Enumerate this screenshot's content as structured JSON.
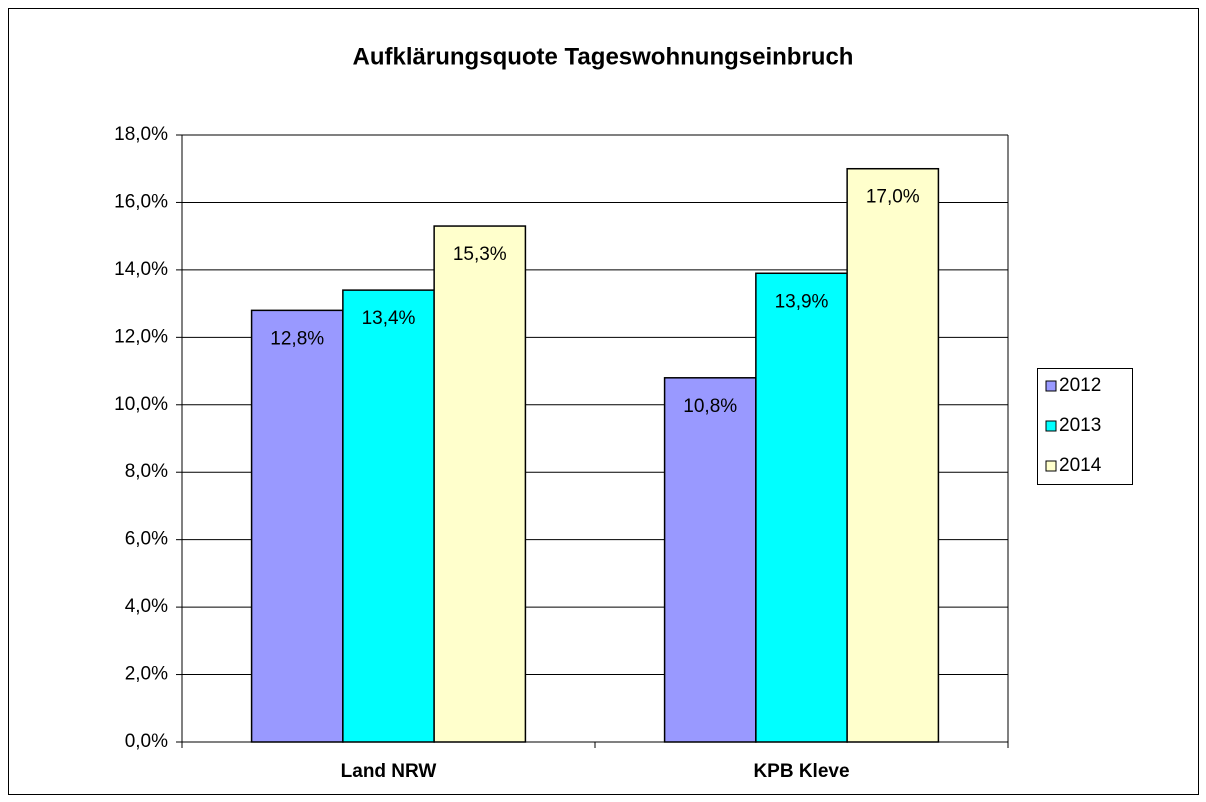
{
  "chart_data": {
    "type": "bar",
    "title": "Aufklärungsquote  Tageswohnungseinbruch",
    "categories": [
      "Land NRW",
      "KPB Kleve"
    ],
    "series": [
      {
        "name": "2012",
        "color": "#9999ff",
        "values": [
          12.8,
          10.8
        ],
        "value_labels": [
          "12,8%",
          "10,8%"
        ]
      },
      {
        "name": "2013",
        "color": "#00ffff",
        "values": [
          13.4,
          13.9
        ],
        "value_labels": [
          "13,4%",
          "13,9%"
        ]
      },
      {
        "name": "2014",
        "color": "#ffffcc",
        "values": [
          15.3,
          17.0
        ],
        "value_labels": [
          "15,3%",
          "17,0%"
        ]
      }
    ],
    "ylim": [
      0,
      18
    ],
    "yticks": [
      {
        "value": 0,
        "label": "0,0%"
      },
      {
        "value": 2,
        "label": "2,0%"
      },
      {
        "value": 4,
        "label": "4,0%"
      },
      {
        "value": 6,
        "label": "6,0%"
      },
      {
        "value": 8,
        "label": "8,0%"
      },
      {
        "value": 10,
        "label": "10,0%"
      },
      {
        "value": 12,
        "label": "12,0%"
      },
      {
        "value": 14,
        "label": "14,0%"
      },
      {
        "value": 16,
        "label": "16,0%"
      },
      {
        "value": 18,
        "label": "18,0%"
      }
    ],
    "grid": true,
    "legend": "right"
  }
}
